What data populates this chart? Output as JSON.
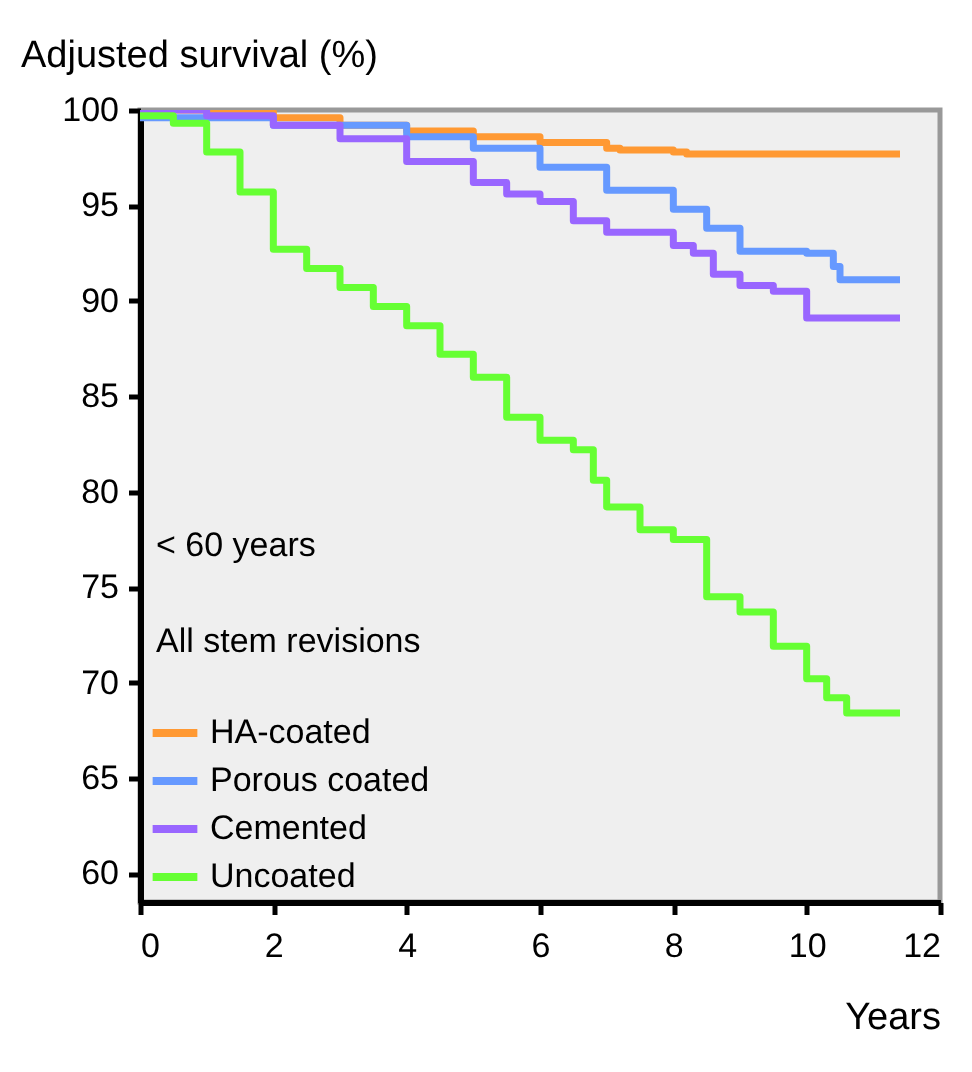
{
  "chart_data": {
    "type": "step",
    "xlabel": "Years",
    "ylabel": "Adjusted survival (%)",
    "annotations": [
      "< 60 years",
      "All stem revisions"
    ],
    "xlim": [
      0,
      12
    ],
    "xticks": [
      0,
      2,
      4,
      6,
      8,
      10,
      12
    ],
    "ylim": [
      58.5,
      100
    ],
    "yticks": [
      60,
      65,
      70,
      75,
      80,
      85,
      90,
      95,
      100
    ],
    "legend": "bottom left",
    "series": [
      {
        "name": "HA-coated",
        "color": "#ff9933",
        "x": [
          0,
          1,
          2,
          3,
          4,
          5,
          6,
          7,
          7.2,
          8,
          8.2,
          11.4
        ],
        "values": [
          100,
          99.9,
          99.6,
          99.2,
          98.9,
          98.6,
          98.3,
          98.0,
          97.9,
          97.8,
          97.7,
          97.7
        ]
      },
      {
        "name": "Porous coated",
        "color": "#6699ff",
        "x": [
          0,
          2,
          4,
          5,
          6,
          7,
          8,
          8.5,
          9,
          10,
          10.4,
          10.5,
          11.4
        ],
        "values": [
          99.6,
          99.2,
          98.6,
          98.0,
          97.0,
          95.8,
          94.8,
          93.8,
          92.6,
          92.5,
          91.8,
          91.1,
          91.1
        ]
      },
      {
        "name": "Cemented",
        "color": "#9966ff",
        "x": [
          0,
          1,
          2,
          3,
          4,
          5,
          5.5,
          6,
          6.5,
          7,
          8,
          8.3,
          8.6,
          9,
          9.5,
          10,
          11.4
        ],
        "values": [
          100,
          99.7,
          99.2,
          98.5,
          97.3,
          96.2,
          95.6,
          95.2,
          94.2,
          93.6,
          92.9,
          92.5,
          91.4,
          90.8,
          90.5,
          89.1,
          89.1
        ]
      },
      {
        "name": "Uncoated",
        "color": "#66ff33",
        "x": [
          0,
          0.5,
          1,
          1.5,
          2,
          2.5,
          3,
          3.5,
          4,
          4.5,
          5,
          5.5,
          6,
          6.5,
          6.8,
          7,
          7.5,
          8,
          8.5,
          9,
          9.5,
          10,
          10.3,
          10.6,
          11.4
        ],
        "values": [
          99.7,
          99.3,
          97.8,
          95.7,
          92.7,
          91.7,
          90.7,
          89.7,
          88.7,
          87.2,
          86.0,
          83.9,
          82.7,
          82.2,
          80.6,
          79.2,
          78.0,
          77.5,
          74.5,
          73.7,
          71.9,
          70.2,
          69.2,
          68.4,
          68.4
        ]
      }
    ]
  }
}
